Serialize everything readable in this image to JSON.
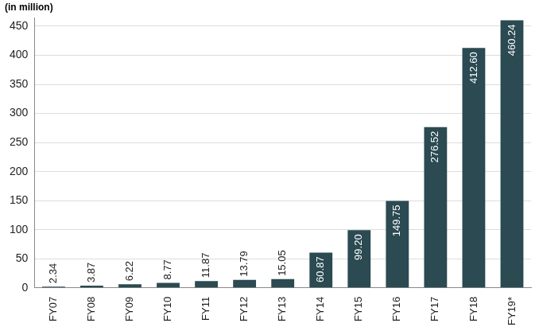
{
  "chart_data": {
    "type": "bar",
    "ylabel": "(in million)",
    "categories": [
      "FY07",
      "FY08",
      "FY09",
      "FY10",
      "FY11",
      "FY12",
      "FY13",
      "FY14",
      "FY15",
      "FY16",
      "FY17",
      "FY18",
      "FY19*"
    ],
    "values": [
      2.34,
      3.87,
      6.22,
      8.77,
      11.87,
      13.79,
      15.05,
      60.87,
      99.2,
      149.75,
      276.52,
      412.6,
      460.24
    ],
    "value_labels": [
      "2.34",
      "3.87",
      "6.22",
      "8.77",
      "11.87",
      "13.79",
      "15.05",
      "60.87",
      "99.20",
      "149.75",
      "276.52",
      "412.60",
      "460.24"
    ],
    "color": "#2b4a52",
    "ylim": [
      0,
      465
    ],
    "yticks": [
      0,
      50,
      100,
      150,
      200,
      250,
      300,
      350,
      400,
      450
    ],
    "grid": true,
    "data_labels": true
  }
}
